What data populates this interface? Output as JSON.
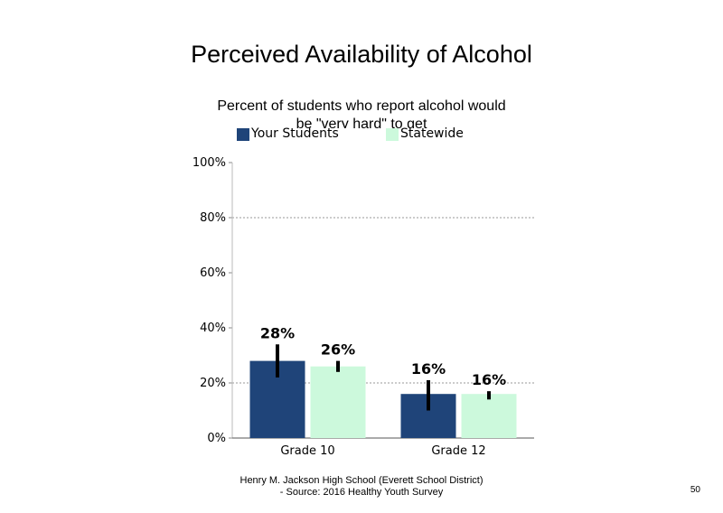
{
  "page": {
    "title": "Perceived Availability of Alcohol",
    "subtitle": "Percent of students who report alcohol would be \"very hard\" to get",
    "footer_line1": "Henry M. Jackson High School (Everett School District)",
    "footer_line2": "- Source: 2016 Healthy Youth Survey",
    "page_number": "50"
  },
  "chart_data": {
    "type": "bar",
    "title": "Perceived Availability of Alcohol",
    "subtitle": "Percent of students who report alcohol would be \"very hard\" to get",
    "categories": [
      "Grade 10",
      "Grade 12"
    ],
    "series": [
      {
        "name": "Your Students",
        "color": "#1f4479",
        "values": [
          28,
          16
        ],
        "labels": [
          "28%",
          "16%"
        ],
        "error": [
          [
            22,
            34
          ],
          [
            10,
            21
          ]
        ]
      },
      {
        "name": "Statewide",
        "color": "#ccf9dc",
        "values": [
          26,
          16
        ],
        "labels": [
          "26%",
          "16%"
        ],
        "error": [
          [
            24,
            28
          ],
          [
            14,
            17
          ]
        ]
      }
    ],
    "ylim": [
      0,
      100
    ],
    "yticks": [
      0,
      20,
      40,
      60,
      80,
      100
    ],
    "ytick_labels": [
      "0%",
      "20%",
      "40%",
      "60%",
      "80%",
      "100%"
    ],
    "gridlines": [
      20,
      80
    ],
    "grid_style": "dotted",
    "legend": "top"
  }
}
